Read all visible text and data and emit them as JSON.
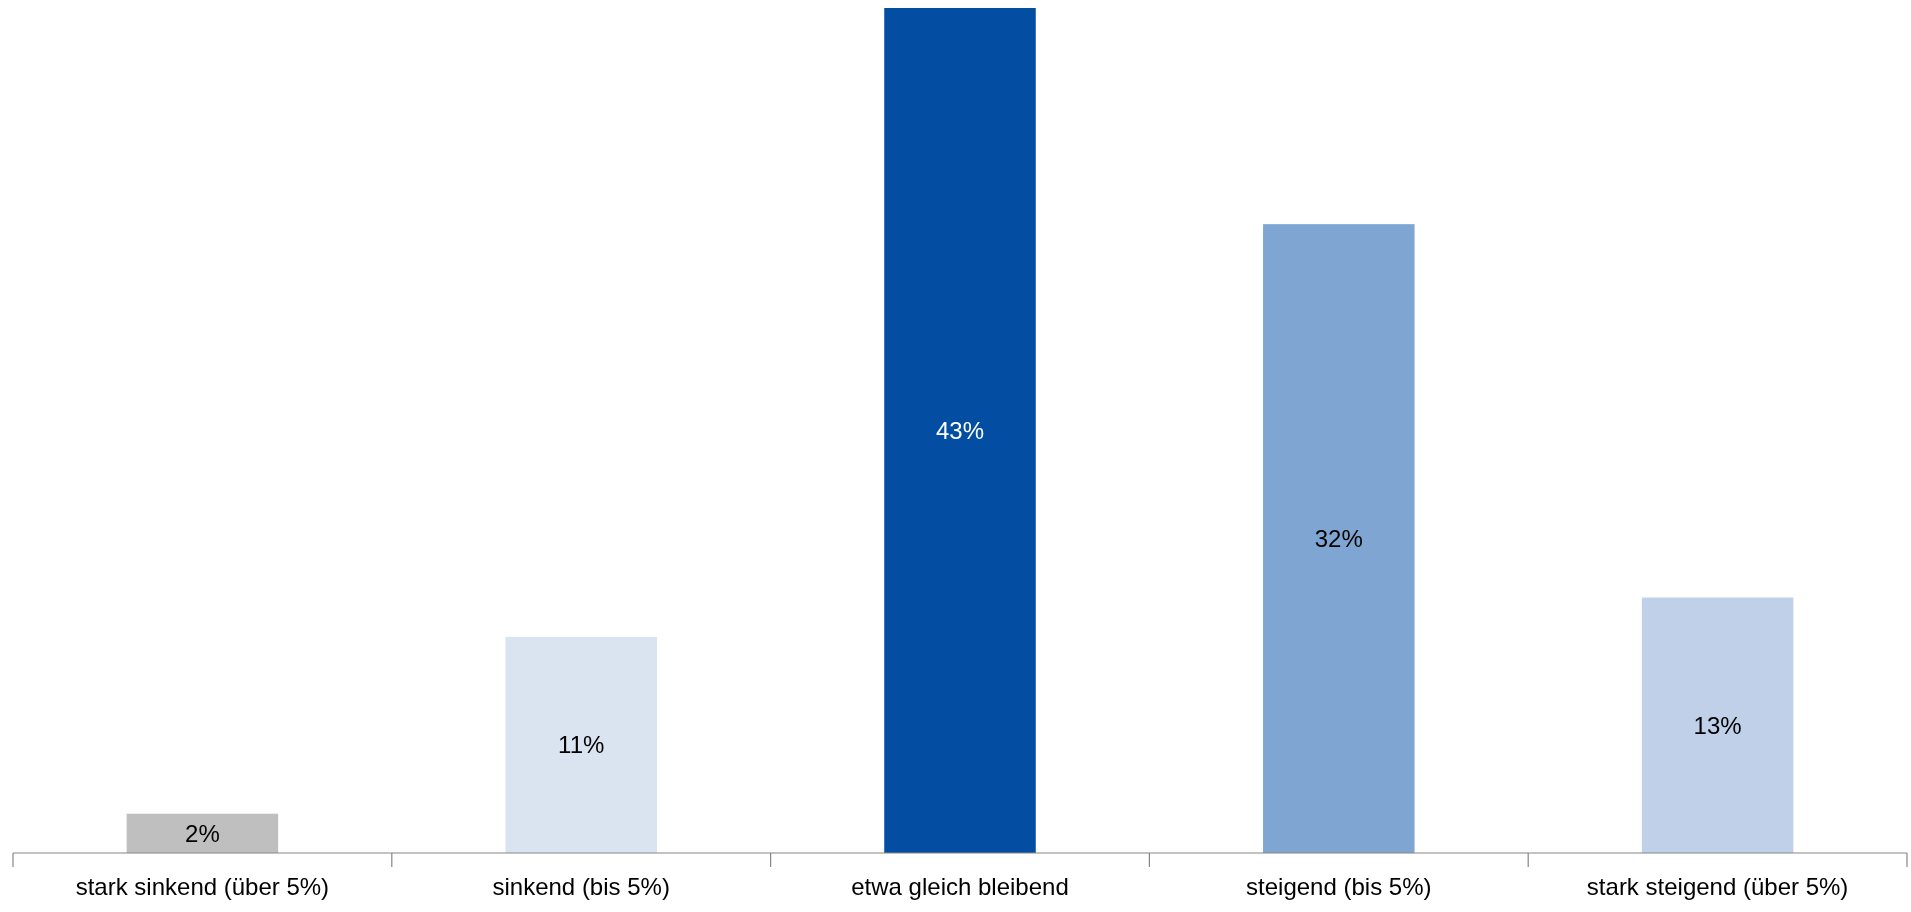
{
  "chart_data": {
    "type": "bar",
    "categories": [
      "stark sinkend (über 5%)",
      "sinkend (bis 5%)",
      "etwa gleich bleibend",
      "steigend (bis 5%)",
      "stark steigend (über 5%)"
    ],
    "values": [
      2,
      11,
      43,
      32,
      13
    ],
    "value_labels": [
      "2%",
      "11%",
      "43%",
      "32%",
      "13%"
    ],
    "colors": [
      "#bfbfbf",
      "#dae3f0",
      "#034ea2",
      "#7fa6d3",
      "#bfd0e8"
    ]
  }
}
